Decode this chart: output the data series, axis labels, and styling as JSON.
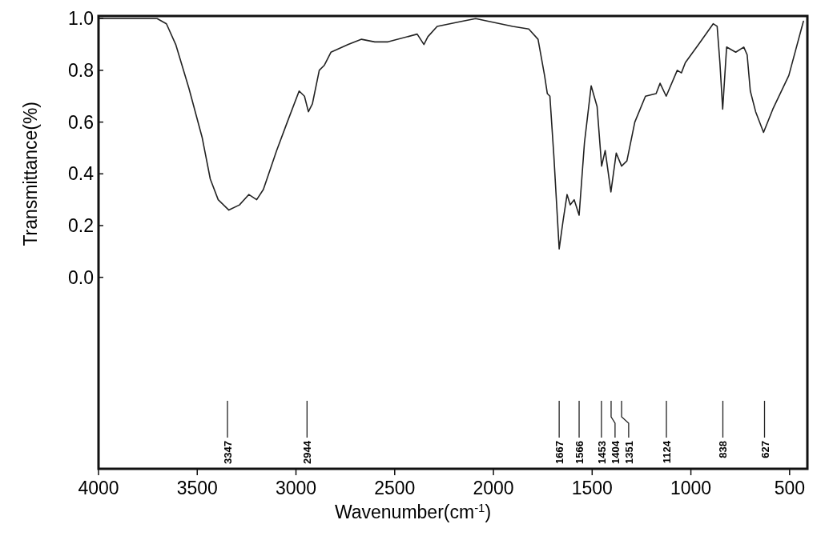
{
  "chart_data": {
    "type": "line",
    "xlabel": "Wavenumber(cm$^{-1}$)",
    "ylabel": "Transmittance(%)",
    "xlim": [
      4000,
      410
    ],
    "xticks": [
      4000,
      3500,
      3000,
      2500,
      2000,
      1500,
      1000,
      500
    ],
    "ylim": [
      -0.74,
      1.01
    ],
    "yticks": [
      {
        "value": 0,
        "label": "0.0"
      },
      0.2,
      0.4,
      0.6,
      0.8,
      {
        "value": 1,
        "label": "1.0"
      }
    ],
    "series": [
      {
        "color": "#222222",
        "x": [
          3992,
          3703,
          3656,
          3609,
          3542,
          3475,
          3434,
          3394,
          3340,
          3286,
          3239,
          3199,
          3165,
          3098,
          3044,
          2984,
          2957,
          2937,
          2917,
          2882,
          2856,
          2823,
          2735,
          2668,
          2601,
          2534,
          2386,
          2352,
          2332,
          2285,
          2157,
          2090,
          1902,
          1821,
          1774,
          1741,
          1727,
          1714,
          1694,
          1667,
          1647,
          1627,
          1611,
          1591,
          1566,
          1539,
          1505,
          1475,
          1452,
          1434,
          1405,
          1378,
          1351,
          1324,
          1284,
          1230,
          1176,
          1156,
          1125,
          1069,
          1048,
          1028,
          961,
          887,
          867,
          853,
          839,
          819,
          773,
          732,
          715,
          699,
          672,
          632,
          585,
          504,
          430
        ],
        "values": [
          1.0,
          1.0,
          0.98,
          0.9,
          0.73,
          0.54,
          0.38,
          0.3,
          0.26,
          0.28,
          0.32,
          0.3,
          0.34,
          0.49,
          0.6,
          0.72,
          0.7,
          0.64,
          0.67,
          0.8,
          0.82,
          0.87,
          0.9,
          0.92,
          0.91,
          0.91,
          0.94,
          0.9,
          0.93,
          0.97,
          0.99,
          1.0,
          0.97,
          0.96,
          0.92,
          0.78,
          0.71,
          0.7,
          0.47,
          0.11,
          0.22,
          0.32,
          0.28,
          0.3,
          0.24,
          0.52,
          0.74,
          0.66,
          0.43,
          0.49,
          0.33,
          0.48,
          0.43,
          0.45,
          0.6,
          0.7,
          0.71,
          0.75,
          0.7,
          0.8,
          0.79,
          0.83,
          0.9,
          0.98,
          0.97,
          0.83,
          0.65,
          0.89,
          0.87,
          0.89,
          0.86,
          0.72,
          0.64,
          0.56,
          0.65,
          0.78,
          0.99
        ]
      }
    ],
    "line_style": "solid",
    "annotations": [
      {
        "text": "3347",
        "x": 3347
      },
      {
        "text": "2944",
        "x": 2944
      },
      {
        "text": "1667",
        "x": 1667
      },
      {
        "text": "1566",
        "x": 1566
      },
      {
        "text": "1453",
        "x": 1453
      },
      {
        "text": "1404",
        "x": 1404
      },
      {
        "text": "1351",
        "x": 1351
      },
      {
        "text": "1124",
        "x": 1124
      },
      {
        "text": "838",
        "x": 838
      },
      {
        "text": "627",
        "x": 627
      }
    ]
  }
}
